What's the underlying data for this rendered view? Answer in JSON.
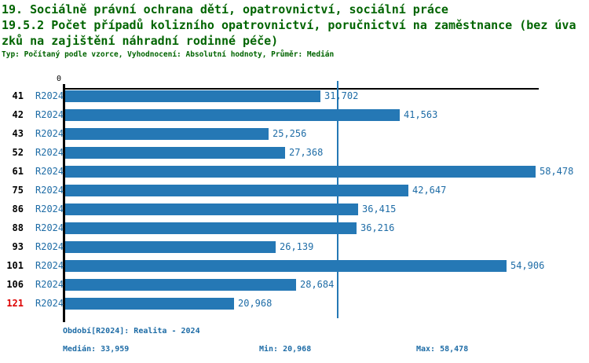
{
  "title": {
    "line1": "19. Sociálně právní ochrana dětí, opatrovnictví, sociální práce",
    "line2": "19.5.2 Počet případů kolizního opatrovnictví, poručnictví na zaměstnance (bez úva",
    "line3": "zků na zajištění náhradní rodinné péče)",
    "subtitle": "Typ: Počítaný podle vzorce, Vyhodnocení: Absolutní hodnoty, Průměr: Medián"
  },
  "chart_data": {
    "type": "bar",
    "orientation": "horizontal",
    "title": "19.5.2 Počet případů kolizního opatrovnictví, poručnictví na zaměstnance (bez úvazků na zajištění náhradní rodinné péče)",
    "categories": [
      "41",
      "42",
      "43",
      "52",
      "61",
      "75",
      "86",
      "88",
      "93",
      "101",
      "106",
      "121"
    ],
    "series": [
      {
        "name": "R2024",
        "values": [
          31702,
          41563,
          25256,
          27368,
          58478,
          42647,
          36415,
          36216,
          26139,
          54906,
          28684,
          20968
        ]
      }
    ],
    "value_labels": [
      "31,702",
      "41,563",
      "25,256",
      "27,368",
      "58,478",
      "42,647",
      "36,415",
      "36,216",
      "26,139",
      "54,906",
      "28,684",
      "20,968"
    ],
    "highlighted_category": "121",
    "xlim": [
      0,
      58478
    ],
    "axis_origin_label": "0",
    "median": 33959,
    "min": 20968,
    "max": 58478,
    "grid": false,
    "legend_position": "none"
  },
  "footer": {
    "period": "Období[R2024]: Realita - 2024",
    "median": "Medián: 33,959",
    "min": "Min: 20,968",
    "max": "Max: 58,478"
  },
  "colors": {
    "bar": "#2578B5",
    "median_line": "#2578B5",
    "text_blue": "#1E6CA6",
    "title_green": "#006400",
    "highlight_red": "#DD0000",
    "axis": "#000000"
  }
}
